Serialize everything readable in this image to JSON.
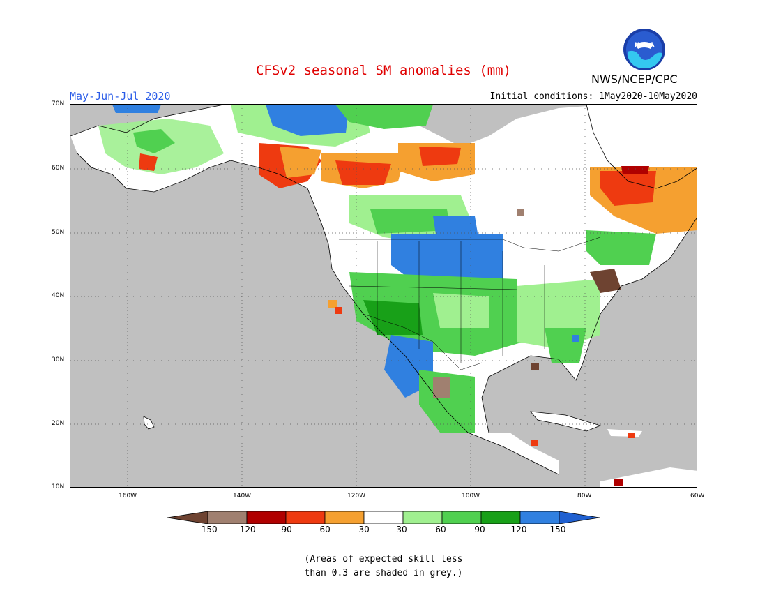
{
  "title": "CFSv2 seasonal SM anomalies (mm)",
  "season": "May-Jun-Jul 2020",
  "initial_conditions": "Initial conditions: 1May2020-10May2020",
  "org": "NWS/NCEP/CPC",
  "logo_text": "NOAA",
  "lat_labels": [
    "70N",
    "60N",
    "50N",
    "40N",
    "30N",
    "20N",
    "10N"
  ],
  "lon_labels": [
    "160W",
    "140W",
    "120W",
    "100W",
    "80W",
    "60W"
  ],
  "colorbar": {
    "labels": [
      "-150",
      "-120",
      "-90",
      "-60",
      "-30",
      "30",
      "60",
      "90",
      "120",
      "150"
    ],
    "colors": [
      "#6e4331",
      "#a08070",
      "#b00000",
      "#ee3a10",
      "#f5a030",
      "#ffffff",
      "#a0f090",
      "#50d050",
      "#18a018",
      "#3080e0",
      "#2060d0"
    ]
  },
  "note_line1": "(Areas of expected skill less",
  "note_line2": "than 0.3 are shaded in grey.)"
}
